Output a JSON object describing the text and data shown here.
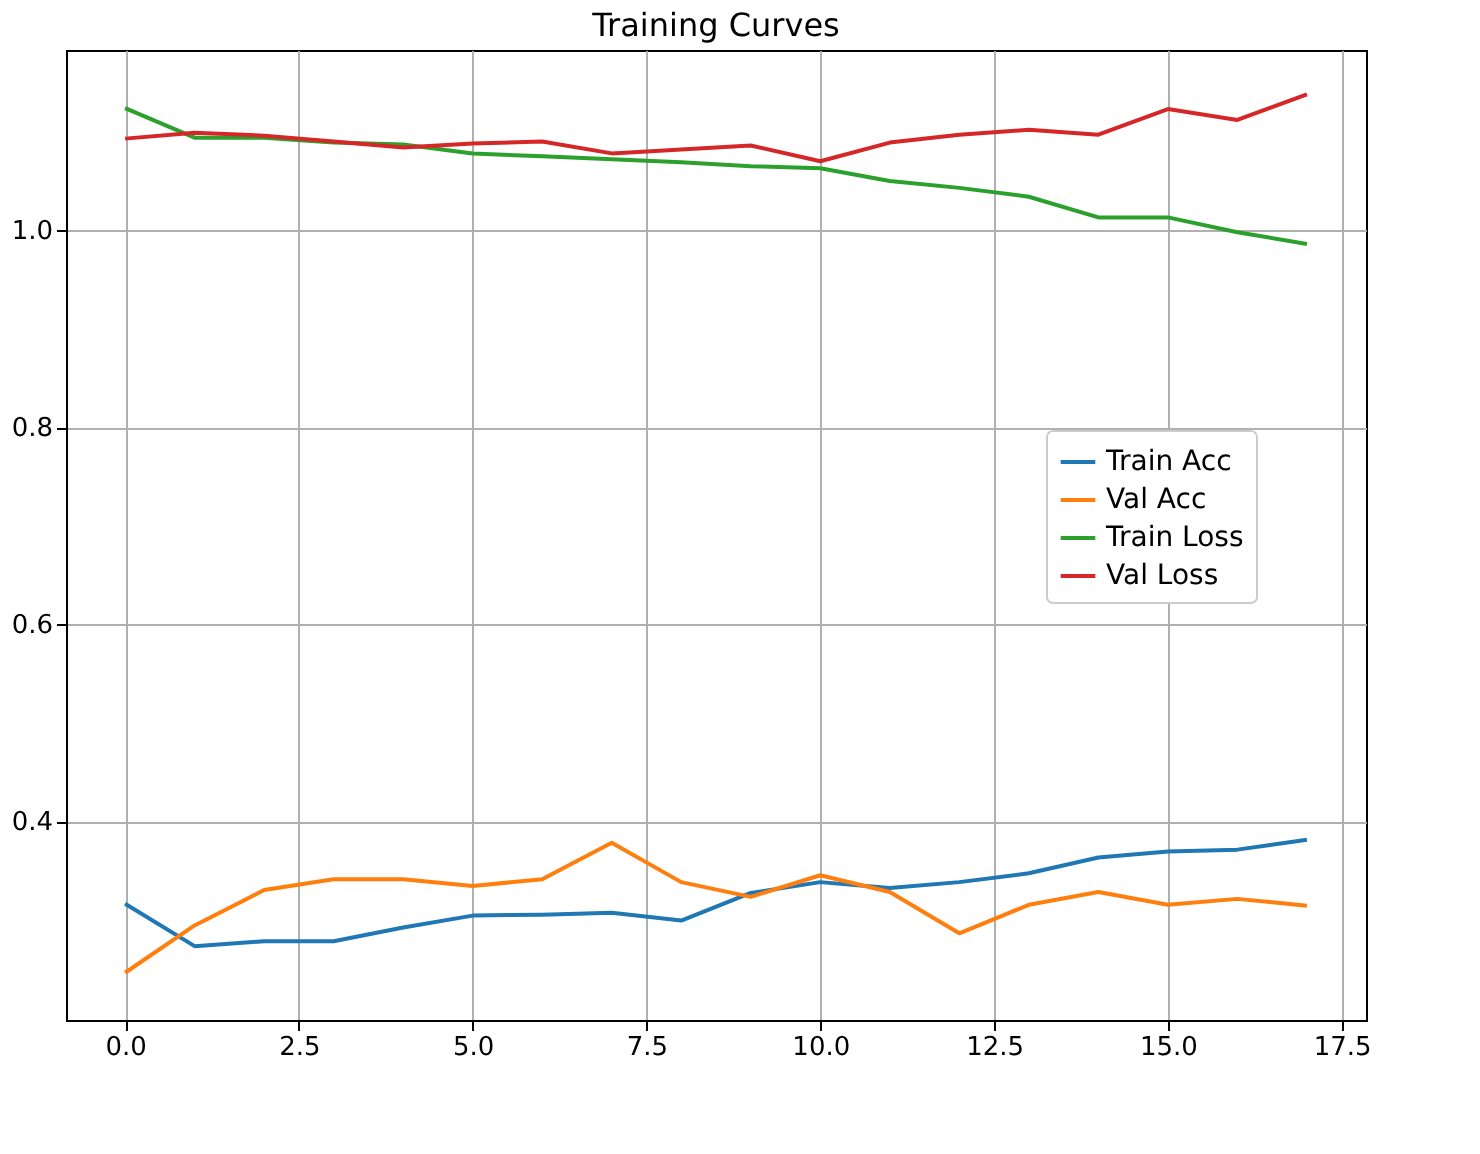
{
  "chart_data": {
    "type": "line",
    "title": "Training Curves",
    "x": [
      0,
      1,
      2,
      3,
      4,
      5,
      6,
      7,
      8,
      9,
      10,
      11,
      12,
      13,
      14,
      15,
      16,
      17
    ],
    "series": [
      {
        "name": "Train Acc",
        "color": "#1f77b4",
        "values": [
          0.316,
          0.273,
          0.278,
          0.278,
          0.292,
          0.304,
          0.305,
          0.307,
          0.299,
          0.327,
          0.338,
          0.332,
          0.338,
          0.347,
          0.363,
          0.369,
          0.371,
          0.381
        ]
      },
      {
        "name": "Val Acc",
        "color": "#ff7f0e",
        "values": [
          0.246,
          0.294,
          0.33,
          0.341,
          0.341,
          0.334,
          0.341,
          0.378,
          0.338,
          0.323,
          0.345,
          0.328,
          0.286,
          0.315,
          0.328,
          0.315,
          0.321,
          0.314
        ]
      },
      {
        "name": "Train Loss",
        "color": "#2ca02c",
        "values": [
          1.124,
          1.094,
          1.094,
          1.089,
          1.087,
          1.078,
          1.075,
          1.072,
          1.069,
          1.065,
          1.063,
          1.05,
          1.043,
          1.034,
          1.013,
          1.013,
          0.998,
          0.986
        ]
      },
      {
        "name": "Val Loss",
        "color": "#d62728",
        "values": [
          1.093,
          1.099,
          1.096,
          1.09,
          1.084,
          1.088,
          1.09,
          1.078,
          1.082,
          1.086,
          1.07,
          1.089,
          1.097,
          1.102,
          1.097,
          1.123,
          1.112,
          1.138
        ]
      }
    ],
    "xlim": [
      -0.85,
      17.85
    ],
    "xticks": [
      {
        "value": 0,
        "label": "0.0"
      },
      2.5,
      {
        "value": 5,
        "label": "5.0"
      },
      7.5,
      {
        "value": 10,
        "label": "10.0"
      },
      12.5,
      {
        "value": 15,
        "label": "15.0"
      },
      17.5
    ],
    "ylim": [
      0.198,
      1.183
    ],
    "yticks": [
      0.4,
      0.6,
      0.8,
      {
        "value": 1,
        "label": "1.0"
      }
    ],
    "grid": true,
    "legend": "right",
    "line_style": "solid",
    "marker": "none"
  }
}
